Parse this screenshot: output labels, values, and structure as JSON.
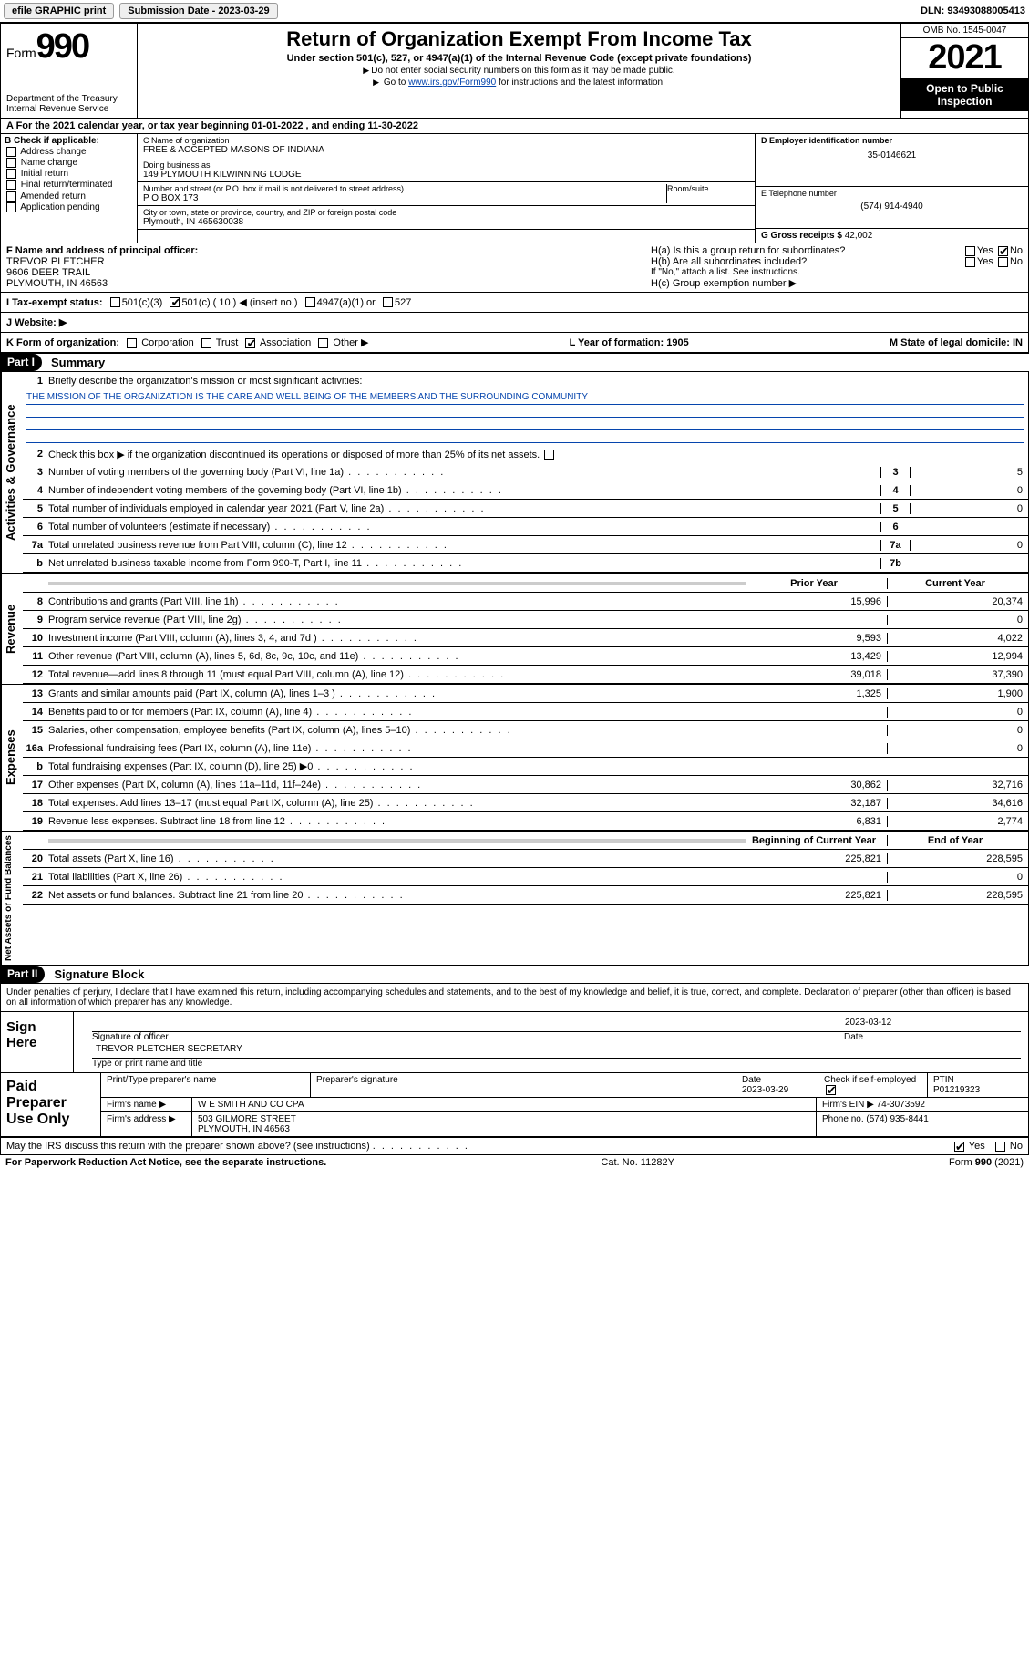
{
  "topbar": {
    "efile": "efile GRAPHIC print",
    "subdate_lbl": "Submission Date - 2023-03-29",
    "dln": "DLN: 93493088005413"
  },
  "header": {
    "form": "Form",
    "num": "990",
    "dept": "Department of the Treasury",
    "irs": "Internal Revenue Service",
    "title": "Return of Organization Exempt From Income Tax",
    "sub": "Under section 501(c), 527, or 4947(a)(1) of the Internal Revenue Code (except private foundations)",
    "note1": "Do not enter social security numbers on this form as it may be made public.",
    "note2_a": "Go to ",
    "note2_link": "www.irs.gov/Form990",
    "note2_b": " for instructions and the latest information.",
    "omb": "OMB No. 1545-0047",
    "year": "2021",
    "open": "Open to Public Inspection"
  },
  "rowA": "A For the 2021 calendar year, or tax year beginning 01-01-2022   , and ending 11-30-2022",
  "boxB": {
    "hdr": "B Check if applicable:",
    "items": [
      "Address change",
      "Name change",
      "Initial return",
      "Final return/terminated",
      "Amended return",
      "Application pending"
    ]
  },
  "boxC": {
    "name_lbl": "C Name of organization",
    "name": "FREE & ACCEPTED MASONS OF INDIANA",
    "dba_lbl": "Doing business as",
    "dba": "149 PLYMOUTH KILWINNING LODGE",
    "street_lbl": "Number and street (or P.O. box if mail is not delivered to street address)",
    "street": "P O BOX 173",
    "room_lbl": "Room/suite",
    "city_lbl": "City or town, state or province, country, and ZIP or foreign postal code",
    "city": "Plymouth, IN  465630038"
  },
  "boxD": {
    "lbl": "D Employer identification number",
    "val": "35-0146621"
  },
  "boxE": {
    "lbl": "E Telephone number",
    "val": "(574) 914-4940"
  },
  "boxG": {
    "lbl": "G Gross receipts $",
    "val": "42,002"
  },
  "boxF": {
    "lbl": "F Name and address of principal officer:",
    "name": "TREVOR PLETCHER",
    "addr1": "9606 DEER TRAIL",
    "addr2": "PLYMOUTH, IN  46563"
  },
  "boxH": {
    "ha": "H(a)  Is this a group return for subordinates?",
    "hb": "H(b)  Are all subordinates included?",
    "hnote": "If \"No,\" attach a list. See instructions.",
    "hc": "H(c)  Group exemption number ▶"
  },
  "taxI": {
    "lbl": "I  Tax-exempt status:",
    "opts": [
      "501(c)(3)",
      "501(c) ( 10 ) ◀ (insert no.)",
      "4947(a)(1) or",
      "527"
    ]
  },
  "webJ": "J  Website: ▶",
  "kform": {
    "k": "K Form of organization:",
    "opts": [
      "Corporation",
      "Trust",
      "Association",
      "Other ▶"
    ],
    "l": "L Year of formation: 1905",
    "m": "M State of legal domicile: IN"
  },
  "part1": {
    "hdr": "Part I",
    "title": "Summary",
    "l1": "Briefly describe the organization's mission or most significant activities:",
    "mission": "THE MISSION OF THE ORGANIZATION IS THE CARE AND WELL BEING OF THE MEMBERS AND THE SURROUNDING COMMUNITY",
    "l2": "Check this box ▶  if the organization discontinued its operations or disposed of more than 25% of its net assets.",
    "lines_gov": [
      {
        "n": "3",
        "d": "Number of voting members of the governing body (Part VI, line 1a)",
        "c": "3",
        "v": "5"
      },
      {
        "n": "4",
        "d": "Number of independent voting members of the governing body (Part VI, line 1b)",
        "c": "4",
        "v": "0"
      },
      {
        "n": "5",
        "d": "Total number of individuals employed in calendar year 2021 (Part V, line 2a)",
        "c": "5",
        "v": "0"
      },
      {
        "n": "6",
        "d": "Total number of volunteers (estimate if necessary)",
        "c": "6",
        "v": ""
      },
      {
        "n": "7a",
        "d": "Total unrelated business revenue from Part VIII, column (C), line 12",
        "c": "7a",
        "v": "0"
      },
      {
        "n": "b",
        "d": "Net unrelated business taxable income from Form 990-T, Part I, line 11",
        "c": "7b",
        "v": ""
      }
    ],
    "col_py": "Prior Year",
    "col_cy": "Current Year",
    "lines_rev": [
      {
        "n": "8",
        "d": "Contributions and grants (Part VIII, line 1h)",
        "py": "15,996",
        "cy": "20,374"
      },
      {
        "n": "9",
        "d": "Program service revenue (Part VIII, line 2g)",
        "py": "",
        "cy": "0"
      },
      {
        "n": "10",
        "d": "Investment income (Part VIII, column (A), lines 3, 4, and 7d )",
        "py": "9,593",
        "cy": "4,022"
      },
      {
        "n": "11",
        "d": "Other revenue (Part VIII, column (A), lines 5, 6d, 8c, 9c, 10c, and 11e)",
        "py": "13,429",
        "cy": "12,994"
      },
      {
        "n": "12",
        "d": "Total revenue—add lines 8 through 11 (must equal Part VIII, column (A), line 12)",
        "py": "39,018",
        "cy": "37,390"
      }
    ],
    "lines_exp": [
      {
        "n": "13",
        "d": "Grants and similar amounts paid (Part IX, column (A), lines 1–3 )",
        "py": "1,325",
        "cy": "1,900"
      },
      {
        "n": "14",
        "d": "Benefits paid to or for members (Part IX, column (A), line 4)",
        "py": "",
        "cy": "0"
      },
      {
        "n": "15",
        "d": "Salaries, other compensation, employee benefits (Part IX, column (A), lines 5–10)",
        "py": "",
        "cy": "0"
      },
      {
        "n": "16a",
        "d": "Professional fundraising fees (Part IX, column (A), line 11e)",
        "py": "",
        "cy": "0"
      },
      {
        "n": "b",
        "d": "Total fundraising expenses (Part IX, column (D), line 25) ▶0",
        "py": "shade",
        "cy": "shade"
      },
      {
        "n": "17",
        "d": "Other expenses (Part IX, column (A), lines 11a–11d, 11f–24e)",
        "py": "30,862",
        "cy": "32,716"
      },
      {
        "n": "18",
        "d": "Total expenses. Add lines 13–17 (must equal Part IX, column (A), line 25)",
        "py": "32,187",
        "cy": "34,616"
      },
      {
        "n": "19",
        "d": "Revenue less expenses. Subtract line 18 from line 12",
        "py": "6,831",
        "cy": "2,774"
      }
    ],
    "col_bcy": "Beginning of Current Year",
    "col_eoy": "End of Year",
    "lines_net": [
      {
        "n": "20",
        "d": "Total assets (Part X, line 16)",
        "py": "225,821",
        "cy": "228,595"
      },
      {
        "n": "21",
        "d": "Total liabilities (Part X, line 26)",
        "py": "",
        "cy": "0"
      },
      {
        "n": "22",
        "d": "Net assets or fund balances. Subtract line 21 from line 20",
        "py": "225,821",
        "cy": "228,595"
      }
    ],
    "vlabels": {
      "gov": "Activities & Governance",
      "rev": "Revenue",
      "exp": "Expenses",
      "net": "Net Assets or Fund Balances"
    }
  },
  "part2": {
    "hdr": "Part II",
    "title": "Signature Block",
    "decl": "Under penalties of perjury, I declare that I have examined this return, including accompanying schedules and statements, and to the best of my knowledge and belief, it is true, correct, and complete. Declaration of preparer (other than officer) is based on all information of which preparer has any knowledge.",
    "sign_here": "Sign Here",
    "sig_officer": "Signature of officer",
    "sig_date": "2023-03-12",
    "date_lbl": "Date",
    "officer": "TREVOR PLETCHER  SECRETARY",
    "type_name": "Type or print name and title",
    "paid": "Paid Preparer Use Only",
    "pt_name": "Print/Type preparer's name",
    "pt_sig": "Preparer's signature",
    "pt_date_lbl": "Date",
    "pt_date": "2023-03-29",
    "pt_check": "Check        if self-employed",
    "ptin_lbl": "PTIN",
    "ptin": "P01219323",
    "firm_name_lbl": "Firm's name    ▶",
    "firm_name": "W E SMITH AND CO CPA",
    "firm_ein": "Firm's EIN ▶ 74-3073592",
    "firm_addr_lbl": "Firm's address ▶",
    "firm_addr1": "503 GILMORE STREET",
    "firm_addr2": "PLYMOUTH, IN  46563",
    "firm_phone": "Phone no. (574) 935-8441",
    "discuss": "May the IRS discuss this return with the preparer shown above? (see instructions)"
  },
  "footer": {
    "pra": "For Paperwork Reduction Act Notice, see the separate instructions.",
    "cat": "Cat. No. 11282Y",
    "form": "Form 990 (2021)"
  }
}
